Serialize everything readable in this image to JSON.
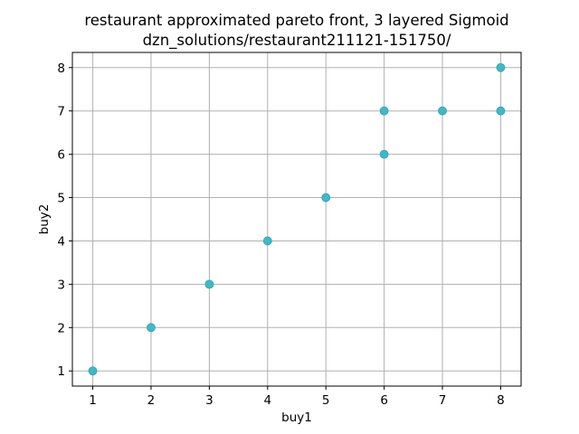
{
  "chart_data": {
    "type": "scatter",
    "title": "restaurant approximated pareto front, 3 layered Sigmoid",
    "subtitle": "dzn_solutions/restaurant211121-151750/",
    "xlabel": "buy1",
    "ylabel": "buy2",
    "xlim": [
      0.65,
      8.35
    ],
    "ylim": [
      0.65,
      8.35
    ],
    "xticks": [
      1,
      2,
      3,
      4,
      5,
      6,
      7,
      8
    ],
    "yticks": [
      1,
      2,
      3,
      4,
      5,
      6,
      7,
      8
    ],
    "grid": true,
    "series": [
      {
        "color": "#42b8c6",
        "points": [
          {
            "x": 1,
            "y": 1
          },
          {
            "x": 2,
            "y": 2
          },
          {
            "x": 3,
            "y": 3
          },
          {
            "x": 4,
            "y": 4
          },
          {
            "x": 5,
            "y": 5
          },
          {
            "x": 6,
            "y": 6
          },
          {
            "x": 6,
            "y": 7
          },
          {
            "x": 7,
            "y": 7
          },
          {
            "x": 8,
            "y": 7
          },
          {
            "x": 8,
            "y": 8
          }
        ]
      }
    ]
  }
}
